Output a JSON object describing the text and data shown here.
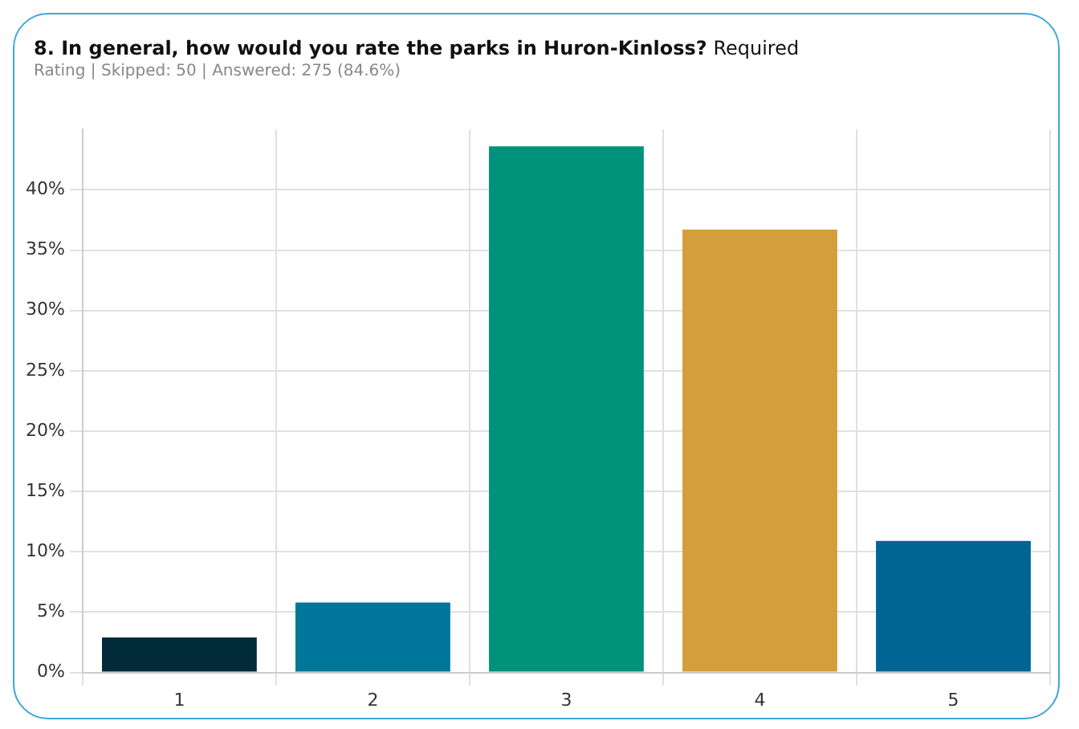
{
  "chart_data": {
    "type": "bar",
    "title": "8. In general, how would you rate the parks in Huron-Kinloss?",
    "subtitle": "Rating | Skipped: 50 | Answered: 275 (84.6%)",
    "annotations": [
      "Required"
    ],
    "categories": [
      "1",
      "2",
      "3",
      "4",
      "5"
    ],
    "values": [
      2.9,
      5.8,
      43.6,
      36.7,
      10.9
    ],
    "colors": [
      "#022b3a",
      "#00769a",
      "#00927b",
      "#d39e3b",
      "#006595"
    ],
    "ylim": [
      0,
      45
    ],
    "yticks": [
      {
        "value": 0,
        "label": "0%"
      },
      {
        "value": 5,
        "label": "5%"
      },
      {
        "value": 10,
        "label": "10%"
      },
      {
        "value": 15,
        "label": "15%"
      },
      {
        "value": 20,
        "label": "20%"
      },
      {
        "value": 25,
        "label": "25%"
      },
      {
        "value": 30,
        "label": "30%"
      },
      {
        "value": 35,
        "label": "35%"
      },
      {
        "value": 40,
        "label": "40%"
      }
    ],
    "grid": true,
    "legend": false
  }
}
